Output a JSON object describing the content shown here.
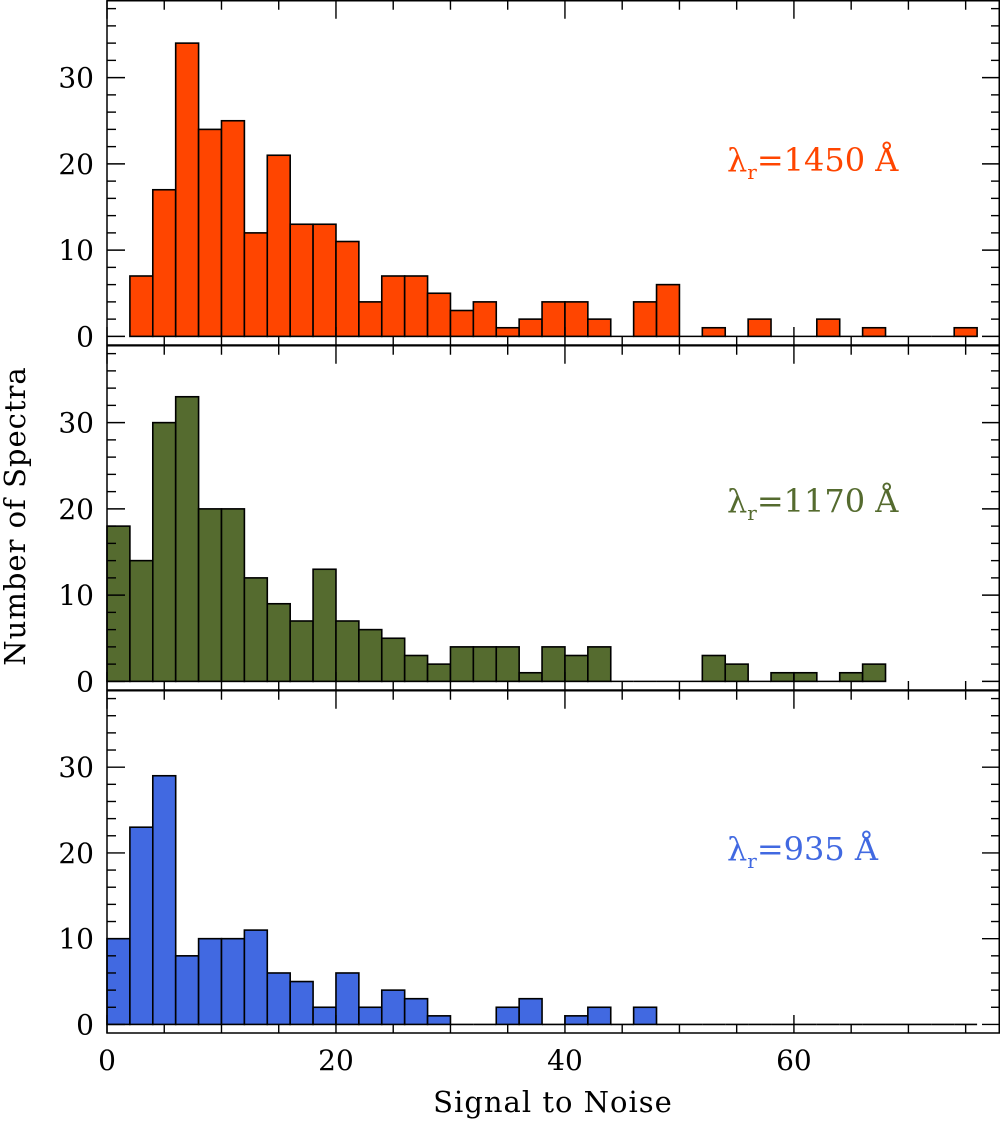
{
  "chart_data": {
    "type": "bar",
    "title": "",
    "xlabel": "Signal to Noise",
    "ylabel": "Number of Spectra",
    "xlim": [
      0,
      78
    ],
    "ylim": [
      -1,
      39
    ],
    "bin_width": 2,
    "x_ticks": [
      0,
      20,
      40,
      60
    ],
    "x_tick_labels": [
      "0",
      "20",
      "40",
      "60"
    ],
    "y_ticks": [
      0,
      10,
      20,
      30
    ],
    "y_tick_labels": [
      "0",
      "10",
      "20",
      "30"
    ],
    "panels": [
      {
        "name": "1450",
        "label_prefix": "λ",
        "label_sub": "r",
        "label_text": "=1450 Å",
        "color": "#FF4500",
        "bin_start": 2,
        "values": [
          7,
          17,
          34,
          24,
          25,
          12,
          21,
          13,
          13,
          11,
          4,
          7,
          7,
          5,
          3,
          4,
          1,
          2,
          4,
          4,
          2,
          0,
          4,
          6,
          0,
          1,
          0,
          2,
          0,
          0,
          2,
          0,
          1,
          0,
          0,
          0,
          1
        ]
      },
      {
        "name": "1170",
        "label_prefix": "λ",
        "label_sub": "r",
        "label_text": "=1170 Å",
        "color": "#556B2F",
        "bin_start": 0,
        "values": [
          18,
          14,
          30,
          33,
          20,
          20,
          12,
          9,
          7,
          13,
          7,
          6,
          5,
          3,
          2,
          4,
          4,
          4,
          1,
          4,
          3,
          4,
          0,
          0,
          0,
          0,
          3,
          2,
          0,
          1,
          1,
          0,
          1,
          2
        ]
      },
      {
        "name": "935",
        "label_prefix": "λ",
        "label_sub": "r",
        "label_text": "=935 Å",
        "color": "#4169E1",
        "bin_start": 0,
        "values": [
          10,
          23,
          29,
          8,
          10,
          10,
          11,
          6,
          5,
          2,
          6,
          2,
          4,
          3,
          1,
          0,
          0,
          2,
          3,
          0,
          1,
          2,
          0,
          2,
          0,
          0,
          0,
          0,
          0,
          0,
          0,
          0,
          0,
          0,
          0,
          0,
          0,
          0
        ]
      }
    ]
  }
}
